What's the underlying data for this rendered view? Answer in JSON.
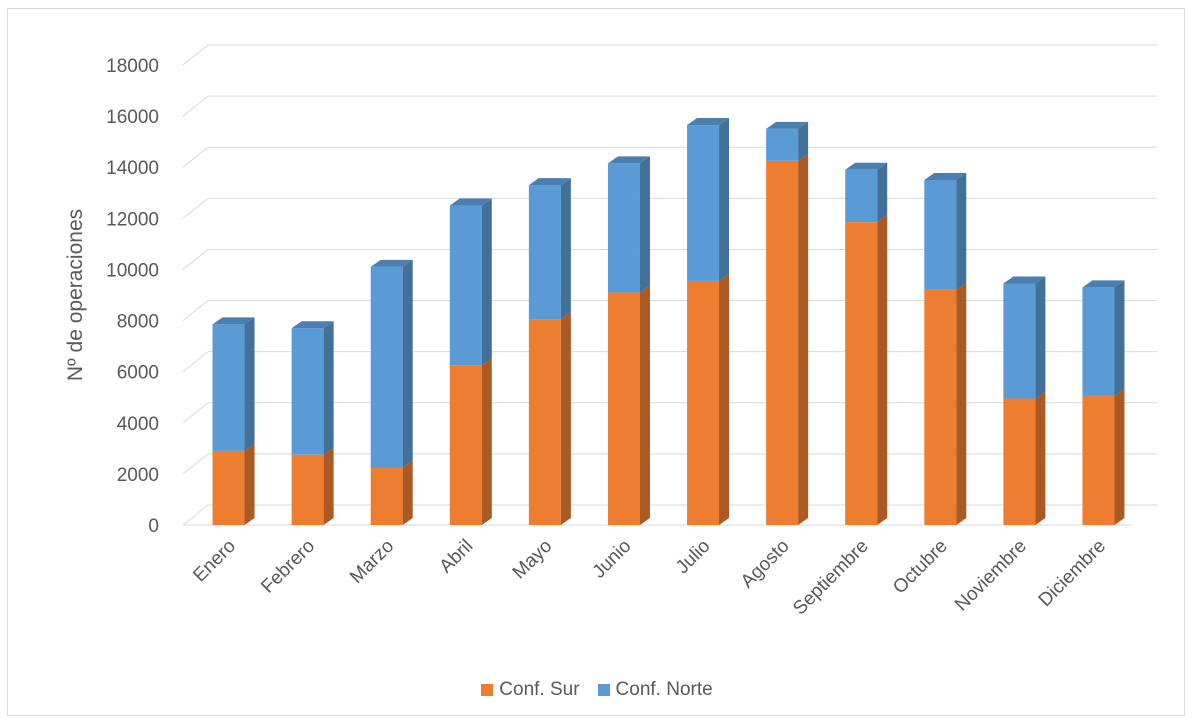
{
  "chart_data": {
    "type": "bar",
    "stacked": true,
    "three_d": true,
    "categories": [
      "Enero",
      "Febrero",
      "Marzo",
      "Abril",
      "Mayo",
      "Junio",
      "Julio",
      "Agosto",
      "Septiembre",
      "Octubre",
      "Noviembre",
      "Diciembre"
    ],
    "series": [
      {
        "name": "Conf. Sur",
        "color": "#ED7D31",
        "values": [
          2900,
          2750,
          2250,
          6250,
          8050,
          9100,
          9550,
          14250,
          11850,
          9200,
          4950,
          5050
        ]
      },
      {
        "name": "Conf. Norte",
        "color": "#5B9BD5",
        "values": [
          4950,
          4950,
          7850,
          6250,
          5250,
          5050,
          6100,
          1250,
          2050,
          4300,
          4500,
          4250
        ]
      }
    ],
    "ylabel": "Nº de operaciones",
    "xlabel": "",
    "ylim": [
      0,
      18000
    ],
    "yticks": [
      0,
      2000,
      4000,
      6000,
      8000,
      10000,
      12000,
      14000,
      16000,
      18000
    ],
    "grid": true,
    "legend": "bottom"
  },
  "legend": {
    "items": [
      {
        "label": "Conf. Sur",
        "color": "#ED7D31"
      },
      {
        "label": "Conf. Norte",
        "color": "#5B9BD5"
      }
    ]
  }
}
